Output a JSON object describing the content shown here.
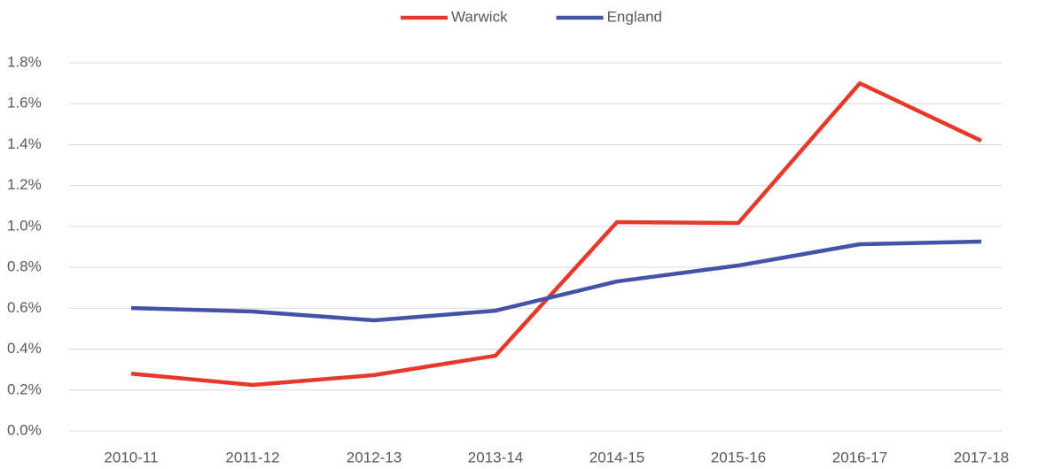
{
  "chart_data": {
    "type": "line",
    "categories": [
      "2010-11",
      "2011-12",
      "2012-13",
      "2013-14",
      "2014-15",
      "2015-16",
      "2016-17",
      "2017-18"
    ],
    "series": [
      {
        "name": "Warwick",
        "color": "#e8382b",
        "values": [
          0.28,
          0.225,
          0.273,
          0.368,
          1.021,
          1.017,
          1.7,
          1.419
        ]
      },
      {
        "name": "England",
        "color": "#4452a8",
        "values": [
          0.601,
          0.584,
          0.541,
          0.588,
          0.731,
          0.809,
          0.913,
          0.926
        ]
      }
    ],
    "ylim": [
      0,
      1.8
    ],
    "yticks": [
      {
        "value": 0,
        "label": "0.0%"
      },
      {
        "value": 0.2,
        "label": "0.2%"
      },
      {
        "value": 0.4,
        "label": "0.4%"
      },
      {
        "value": 0.6,
        "label": "0.6%"
      },
      {
        "value": 0.8,
        "label": "0.8%"
      },
      {
        "value": 1.0,
        "label": "1.0%"
      },
      {
        "value": 1.2,
        "label": "1.2%"
      },
      {
        "value": 1.4,
        "label": "1.4%"
      },
      {
        "value": 1.6,
        "label": "1.6%"
      },
      {
        "value": 1.8,
        "label": "1.8%"
      }
    ],
    "grid": true,
    "legend": "top"
  }
}
